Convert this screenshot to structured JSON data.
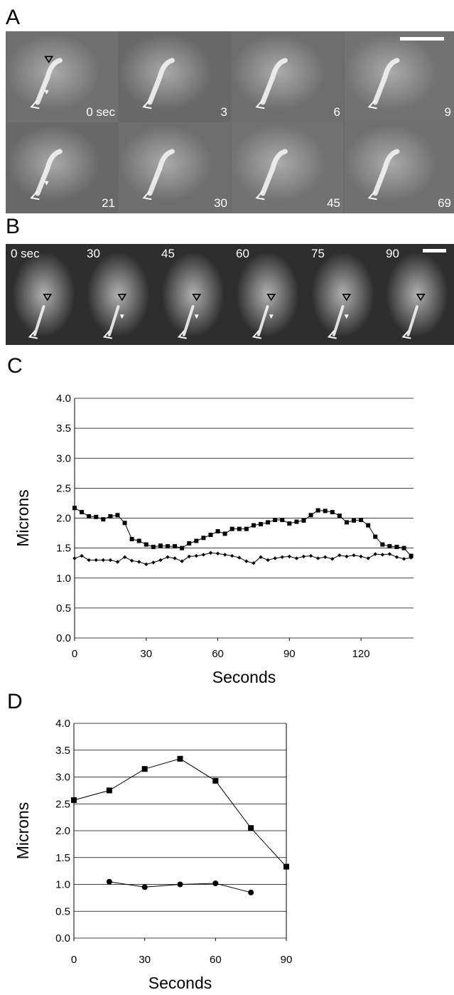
{
  "figure": {
    "panel_labels": [
      "A",
      "B",
      "C",
      "D"
    ],
    "panel_a": {
      "times_row1": [
        "0 sec",
        "3",
        "6",
        "9"
      ],
      "times_row2": [
        "21",
        "30",
        "45",
        "69"
      ]
    },
    "panel_b": {
      "times": [
        "0 sec",
        "30",
        "45",
        "60",
        "75",
        "90"
      ]
    }
  },
  "chart_data": [
    {
      "type": "line",
      "panel": "C",
      "xlabel": "Seconds",
      "ylabel": "Microns",
      "xlim": [
        0,
        142
      ],
      "ylim": [
        0,
        4
      ],
      "xticks": [
        0,
        30,
        60,
        90,
        120
      ],
      "yticks": [
        "0.0",
        "0.5",
        "1.0",
        "1.5",
        "2.0",
        "2.5",
        "3.0",
        "3.5",
        "4.0"
      ],
      "grid": "horizontal",
      "x": [
        0,
        3,
        6,
        9,
        12,
        15,
        18,
        21,
        24,
        27,
        30,
        33,
        36,
        39,
        42,
        45,
        48,
        51,
        54,
        57,
        60,
        63,
        66,
        69,
        72,
        75,
        78,
        81,
        84,
        87,
        90,
        93,
        96,
        99,
        102,
        105,
        108,
        111,
        114,
        117,
        120,
        123,
        126,
        129,
        132,
        135,
        138,
        141
      ],
      "series": [
        {
          "marker": "square",
          "values": [
            2.17,
            2.1,
            2.03,
            2.02,
            1.98,
            2.03,
            2.05,
            1.92,
            1.65,
            1.62,
            1.56,
            1.52,
            1.54,
            1.53,
            1.53,
            1.5,
            1.58,
            1.62,
            1.67,
            1.72,
            1.78,
            1.74,
            1.82,
            1.82,
            1.82,
            1.88,
            1.9,
            1.93,
            1.97,
            1.97,
            1.91,
            1.94,
            1.96,
            2.05,
            2.13,
            2.12,
            2.1,
            2.04,
            1.93,
            1.96,
            1.97,
            1.88,
            1.69,
            1.56,
            1.53,
            1.52,
            1.5,
            1.37
          ]
        },
        {
          "marker": "diamond",
          "values": [
            1.33,
            1.37,
            1.3,
            1.3,
            1.3,
            1.3,
            1.27,
            1.35,
            1.29,
            1.27,
            1.23,
            1.26,
            1.3,
            1.35,
            1.33,
            1.28,
            1.36,
            1.37,
            1.39,
            1.42,
            1.41,
            1.39,
            1.37,
            1.34,
            1.28,
            1.25,
            1.35,
            1.3,
            1.33,
            1.35,
            1.36,
            1.33,
            1.36,
            1.37,
            1.33,
            1.35,
            1.32,
            1.38,
            1.36,
            1.38,
            1.36,
            1.33,
            1.4,
            1.39,
            1.4,
            1.35,
            1.32,
            1.34
          ]
        }
      ]
    },
    {
      "type": "line",
      "panel": "D",
      "xlabel": "Seconds",
      "ylabel": "Microns",
      "xlim": [
        0,
        90
      ],
      "ylim": [
        0,
        4
      ],
      "xticks": [
        0,
        30,
        60,
        90
      ],
      "yticks": [
        "0.0",
        "0.5",
        "1.0",
        "1.5",
        "2.0",
        "2.5",
        "3.0",
        "3.5",
        "4.0"
      ],
      "grid": "horizontal",
      "series": [
        {
          "marker": "square",
          "x": [
            0,
            15,
            30,
            45,
            60,
            75,
            90
          ],
          "values": [
            2.57,
            2.75,
            3.15,
            3.34,
            2.93,
            2.05,
            1.33
          ]
        },
        {
          "marker": "circle",
          "x": [
            15,
            30,
            45,
            60,
            75
          ],
          "values": [
            1.05,
            0.95,
            1.0,
            1.02,
            0.85
          ]
        }
      ]
    }
  ]
}
